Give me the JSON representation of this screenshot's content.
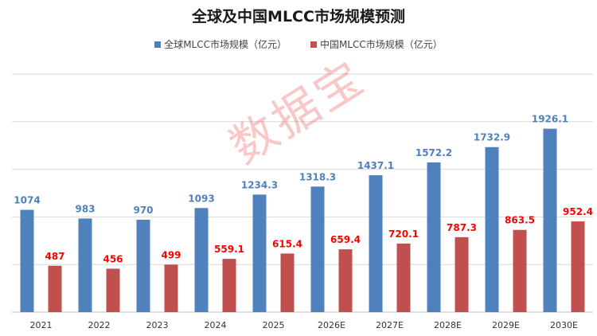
{
  "colors": {
    "global": "#4f81bd",
    "china": "#c0504d",
    "global_label": "#4f81bd",
    "china_label": "#ff0000",
    "grid": "#d9d9d9"
  },
  "watermark": "数据宝",
  "chart_data": {
    "type": "bar",
    "title": "全球及中国MLCC市场规模预测",
    "categories": [
      "2021",
      "2022",
      "2023",
      "2024",
      "2025",
      "2026E",
      "2027E",
      "2028E",
      "2029E",
      "2030E"
    ],
    "series": [
      {
        "name": "全球MLCC市场规模（亿元）",
        "values": [
          1074,
          983,
          970,
          1093,
          1234.3,
          1318.3,
          1437.1,
          1572.2,
          1732.9,
          1926.1
        ],
        "labels": [
          "1074",
          "983",
          "970",
          "1093",
          "1234.3",
          "1318.3",
          "1437.1",
          "1572.2",
          "1732.9",
          "1926.1"
        ]
      },
      {
        "name": "中国MLCC市场规模（亿元）",
        "values": [
          487,
          456,
          499,
          559.1,
          615.4,
          659.4,
          720.1,
          787.3,
          863.5,
          952.4
        ],
        "labels": [
          "487",
          "456",
          "499",
          "559.1",
          "615.4",
          "659.4",
          "720.1",
          "787.3",
          "863.5",
          "952.4"
        ]
      }
    ],
    "ylim": [
      0,
      2500
    ],
    "grid": true,
    "legend": "top-center"
  }
}
